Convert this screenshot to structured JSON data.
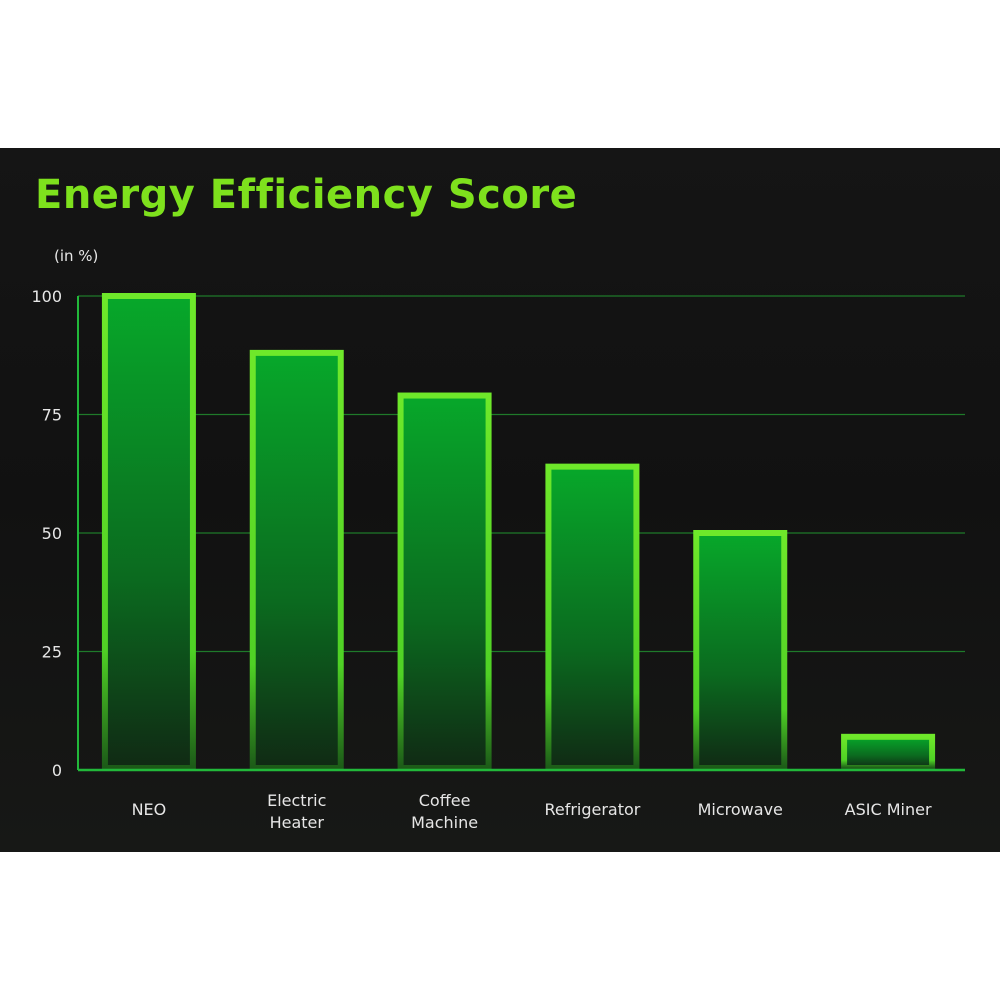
{
  "chart_data": {
    "type": "bar",
    "title": "Energy Efficiency Score",
    "ylabel": "(in %)",
    "xlabel": "",
    "categories": [
      [
        "NEO"
      ],
      [
        "Electric",
        "Heater"
      ],
      [
        "Coffee",
        "Machine"
      ],
      [
        "Refrigerator"
      ],
      [
        "Microwave"
      ],
      [
        "ASIC Miner"
      ]
    ],
    "values": [
      100,
      88,
      79,
      64,
      50,
      7
    ],
    "ylim": [
      0,
      100
    ],
    "yticks": [
      "0",
      "25",
      "50",
      "75",
      "100"
    ],
    "grid": true,
    "colors": {
      "title": "#7ee11d",
      "bar_outline": "#5fe325",
      "bar_top": "#07a82a",
      "gridline": "#1f7a2a",
      "axis": "#22b83a"
    }
  }
}
